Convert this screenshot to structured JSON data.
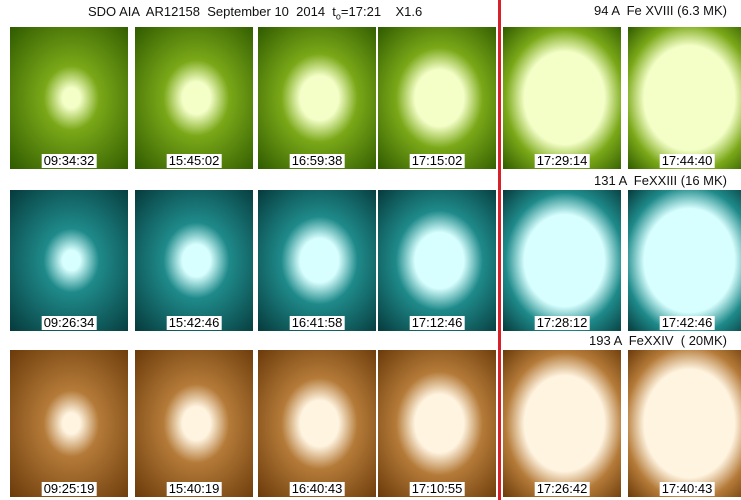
{
  "header": {
    "title": "SDO AIA  AR12158  September 10  2014",
    "t_symbol": "t",
    "t_subscript": "o",
    "t_value": "=17:21",
    "flare_class": "X1.6"
  },
  "rows": [
    {
      "label": "94 A  Fe XVIII (6.3 MK)",
      "times": [
        "09:34:32",
        "15:45:02",
        "16:59:38",
        "17:15:02",
        "17:29:14",
        "17:44:40"
      ]
    },
    {
      "label": "131 A  FeXXIII (16 MK)",
      "times": [
        "09:26:34",
        "15:42:46",
        "16:41:58",
        "17:12:46",
        "17:28:12",
        "17:42:46"
      ]
    },
    {
      "label": "193 A  FeXXIV  ( 20MK)",
      "times": [
        "09:25:19",
        "15:40:19",
        "16:40:43",
        "17:10:55",
        "17:26:42",
        "17:40:43"
      ]
    }
  ]
}
